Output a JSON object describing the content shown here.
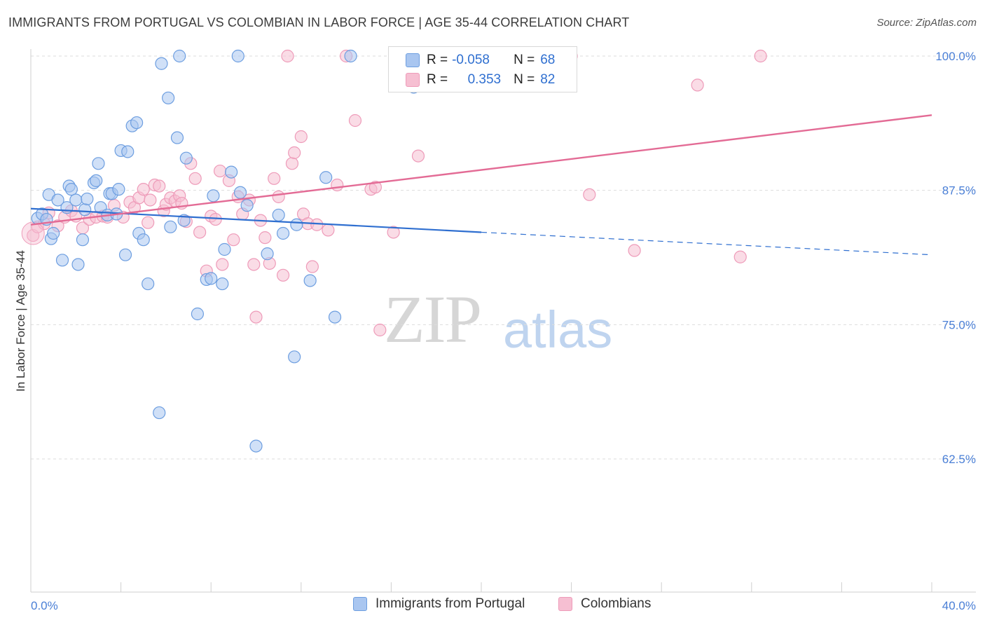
{
  "header": {
    "title": "IMMIGRANTS FROM PORTUGAL VS COLOMBIAN IN LABOR FORCE | AGE 35-44 CORRELATION CHART",
    "source": "Source: ZipAtlas.com"
  },
  "watermark": {
    "zip": "ZIP",
    "atlas": "atlas"
  },
  "legend_top": {
    "rows": [
      {
        "r_label": "R =",
        "r_value": "-0.058",
        "n_label": "N =",
        "n_value": "68"
      },
      {
        "r_label": "R =",
        "r_value": "0.353",
        "n_label": "N =",
        "n_value": "82"
      }
    ]
  },
  "legend_bottom": {
    "series1": "Immigrants from Portugal",
    "series2": "Colombians"
  },
  "colors": {
    "blue_fill": "#a9c6f0",
    "blue_stroke": "#6d9ee0",
    "blue_line": "#2f6fd0",
    "pink_fill": "#f6bfd2",
    "pink_stroke": "#ee9bb9",
    "pink_line": "#e36b95",
    "tick_text": "#4a7fd6",
    "grid": "#dddddd"
  },
  "chart_data": {
    "type": "scatter",
    "title": "IMMIGRANTS FROM PORTUGAL VS COLOMBIAN IN LABOR FORCE | AGE 35-44 CORRELATION CHART",
    "ylabel": "In Labor Force | Age 35-44",
    "xlabel": "",
    "xlim": [
      0,
      40
    ],
    "ylim": [
      50,
      101
    ],
    "x_tick_labels": [
      "0.0%",
      "40.0%"
    ],
    "y_ticks": [
      62.5,
      75.0,
      87.5,
      100.0
    ],
    "y_tick_labels": [
      "62.5%",
      "75.0%",
      "87.5%",
      "100.0%"
    ],
    "grid": true,
    "legend_position": "top-center",
    "series": [
      {
        "name": "Immigrants from Portugal",
        "R": -0.058,
        "N": 68,
        "trend": {
          "x0": 0,
          "y0": 85.8,
          "x1": 20,
          "y1": 83.6,
          "dashed_to_x": 40,
          "dashed_to_y": 81.5
        },
        "points": [
          [
            0.3,
            84.9
          ],
          [
            0.5,
            85.3
          ],
          [
            0.7,
            84.8
          ],
          [
            0.8,
            87.1
          ],
          [
            0.9,
            83.0
          ],
          [
            1.0,
            83.5
          ],
          [
            1.2,
            86.6
          ],
          [
            1.4,
            81.0
          ],
          [
            1.6,
            85.9
          ],
          [
            1.7,
            87.9
          ],
          [
            1.8,
            87.6
          ],
          [
            2.0,
            86.6
          ],
          [
            2.1,
            80.6
          ],
          [
            2.3,
            82.9
          ],
          [
            2.4,
            85.7
          ],
          [
            2.5,
            86.7
          ],
          [
            2.8,
            88.2
          ],
          [
            2.9,
            88.4
          ],
          [
            3.0,
            90.0
          ],
          [
            3.1,
            85.9
          ],
          [
            3.4,
            85.2
          ],
          [
            3.5,
            87.2
          ],
          [
            3.6,
            87.2
          ],
          [
            3.8,
            85.3
          ],
          [
            3.9,
            87.6
          ],
          [
            4.0,
            91.2
          ],
          [
            4.2,
            81.5
          ],
          [
            4.3,
            91.1
          ],
          [
            4.5,
            93.5
          ],
          [
            4.7,
            93.8
          ],
          [
            4.8,
            83.5
          ],
          [
            5.0,
            82.9
          ],
          [
            5.2,
            78.8
          ],
          [
            5.7,
            66.8
          ],
          [
            5.8,
            99.3
          ],
          [
            6.1,
            96.1
          ],
          [
            6.2,
            84.1
          ],
          [
            6.5,
            92.4
          ],
          [
            6.6,
            100.0
          ],
          [
            6.8,
            84.7
          ],
          [
            6.9,
            90.5
          ],
          [
            7.4,
            76.0
          ],
          [
            7.8,
            79.2
          ],
          [
            8.0,
            79.3
          ],
          [
            8.1,
            87.0
          ],
          [
            8.5,
            78.8
          ],
          [
            8.6,
            82.0
          ],
          [
            8.9,
            89.2
          ],
          [
            9.2,
            100.0
          ],
          [
            9.3,
            87.3
          ],
          [
            9.6,
            86.1
          ],
          [
            10.0,
            63.7
          ],
          [
            10.5,
            81.6
          ],
          [
            11.0,
            85.2
          ],
          [
            11.2,
            83.5
          ],
          [
            11.7,
            72.0
          ],
          [
            11.8,
            84.3
          ],
          [
            12.4,
            79.1
          ],
          [
            13.1,
            88.7
          ],
          [
            13.5,
            75.7
          ],
          [
            14.2,
            100.0
          ],
          [
            17.0,
            97.1
          ]
        ]
      },
      {
        "name": "Colombians",
        "R": 0.353,
        "N": 82,
        "trend": {
          "x0": 0,
          "y0": 84.3,
          "x1": 40,
          "y1": 94.5
        },
        "points": [
          [
            0.1,
            83.3
          ],
          [
            0.3,
            84.1
          ],
          [
            0.6,
            84.4
          ],
          [
            0.8,
            85.4
          ],
          [
            1.2,
            84.2
          ],
          [
            1.5,
            85.0
          ],
          [
            1.8,
            85.6
          ],
          [
            2.0,
            85.1
          ],
          [
            2.3,
            84.0
          ],
          [
            2.6,
            84.8
          ],
          [
            2.9,
            85.0
          ],
          [
            3.2,
            85.1
          ],
          [
            3.4,
            85.0
          ],
          [
            3.7,
            86.1
          ],
          [
            4.1,
            85.0
          ],
          [
            4.4,
            86.4
          ],
          [
            4.6,
            85.9
          ],
          [
            4.8,
            86.8
          ],
          [
            5.0,
            87.6
          ],
          [
            5.2,
            84.5
          ],
          [
            5.3,
            86.6
          ],
          [
            5.5,
            88.0
          ],
          [
            5.7,
            87.9
          ],
          [
            5.9,
            85.6
          ],
          [
            6.0,
            86.2
          ],
          [
            6.2,
            86.8
          ],
          [
            6.4,
            86.5
          ],
          [
            6.6,
            87.0
          ],
          [
            6.7,
            86.3
          ],
          [
            6.9,
            84.6
          ],
          [
            7.1,
            90.0
          ],
          [
            7.3,
            88.6
          ],
          [
            7.5,
            83.6
          ],
          [
            7.8,
            80.0
          ],
          [
            8.0,
            85.1
          ],
          [
            8.2,
            84.8
          ],
          [
            8.4,
            89.3
          ],
          [
            8.5,
            80.6
          ],
          [
            8.8,
            88.4
          ],
          [
            9.0,
            82.9
          ],
          [
            9.2,
            86.9
          ],
          [
            9.4,
            85.3
          ],
          [
            9.7,
            86.6
          ],
          [
            9.9,
            80.6
          ],
          [
            10.0,
            75.7
          ],
          [
            10.2,
            84.7
          ],
          [
            10.4,
            83.1
          ],
          [
            10.6,
            80.7
          ],
          [
            10.8,
            88.6
          ],
          [
            11.0,
            86.9
          ],
          [
            11.2,
            79.6
          ],
          [
            11.6,
            90.0
          ],
          [
            11.7,
            91.0
          ],
          [
            12.0,
            92.5
          ],
          [
            12.1,
            85.3
          ],
          [
            12.3,
            84.4
          ],
          [
            12.5,
            80.4
          ],
          [
            12.7,
            84.3
          ],
          [
            13.2,
            83.8
          ],
          [
            13.6,
            88.0
          ],
          [
            14.0,
            100.0
          ],
          [
            14.4,
            94.0
          ],
          [
            15.1,
            87.6
          ],
          [
            15.3,
            87.8
          ],
          [
            15.5,
            74.5
          ],
          [
            16.1,
            83.6
          ],
          [
            17.2,
            90.7
          ],
          [
            18.5,
            100.0
          ],
          [
            19.8,
            100.0
          ],
          [
            24.0,
            100.0
          ],
          [
            24.8,
            87.1
          ],
          [
            26.8,
            81.9
          ],
          [
            29.6,
            97.3
          ],
          [
            31.5,
            81.3
          ],
          [
            32.4,
            100.0
          ],
          [
            11.4,
            100.0
          ]
        ]
      }
    ]
  }
}
